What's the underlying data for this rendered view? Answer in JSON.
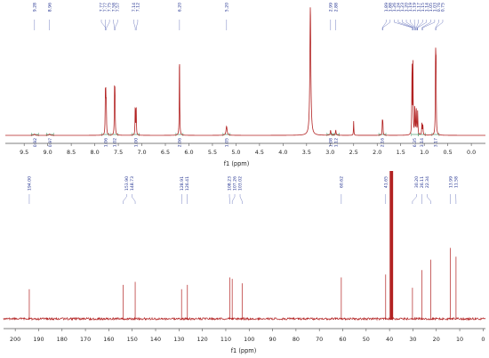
{
  "chart_data": [
    {
      "type": "line",
      "xlabel": "f1 (ppm)",
      "xlim": [
        9.9,
        -0.3
      ],
      "x_reversed": true,
      "ticks": [
        9.5,
        9.0,
        8.5,
        8.0,
        7.5,
        7.0,
        6.5,
        6.0,
        5.5,
        5.0,
        4.5,
        4.0,
        3.5,
        3.0,
        2.5,
        2.0,
        1.5,
        1.0,
        0.5,
        0.0
      ],
      "tick_labels": [
        "9.5",
        "9.0",
        "8.5",
        "8.0",
        "7.5",
        "7.0",
        "6.5",
        "6.0",
        "5.5",
        "5.0",
        "4.5",
        "4.0",
        "3.5",
        "3.0",
        "2.5",
        "2.0",
        "1.5",
        "1.0",
        "0.5",
        "0.0"
      ],
      "peak_labels": [
        {
          "x": 9.28,
          "label": "9.28"
        },
        {
          "x": 8.96,
          "label": "8.96"
        },
        {
          "x": 7.77,
          "label": "7.77"
        },
        {
          "x": 7.77,
          "label": "7.77"
        },
        {
          "x": 7.75,
          "label": "7.75"
        },
        {
          "x": 7.58,
          "label": "7.58"
        },
        {
          "x": 7.57,
          "label": "7.57"
        },
        {
          "x": 7.14,
          "label": "7.14"
        },
        {
          "x": 7.12,
          "label": "7.12"
        },
        {
          "x": 6.2,
          "label": "6.20"
        },
        {
          "x": 5.2,
          "label": "5.20"
        },
        {
          "x": 2.99,
          "label": "2.99"
        },
        {
          "x": 2.88,
          "label": "2.88"
        },
        {
          "x": 1.89,
          "label": "1.89"
        },
        {
          "x": 1.88,
          "label": "1.88"
        },
        {
          "x": 1.26,
          "label": "1.26"
        },
        {
          "x": 1.24,
          "label": "1.24"
        },
        {
          "x": 1.23,
          "label": "1.23"
        },
        {
          "x": 1.2,
          "label": "1.20"
        },
        {
          "x": 1.19,
          "label": "1.19"
        },
        {
          "x": 1.19,
          "label": "1.19"
        },
        {
          "x": 1.17,
          "label": "1.17"
        },
        {
          "x": 1.15,
          "label": "1.15"
        },
        {
          "x": 1.14,
          "label": "1.14"
        },
        {
          "x": 1.05,
          "label": "1.05"
        },
        {
          "x": 1.03,
          "label": "1.03"
        },
        {
          "x": 0.76,
          "label": "0.76"
        },
        {
          "x": 0.75,
          "label": "0.75"
        }
      ],
      "integrals": [
        {
          "x": 9.27,
          "label": "0.92"
        },
        {
          "x": 8.95,
          "label": "0.97"
        },
        {
          "x": 7.77,
          "label": "1.06"
        },
        {
          "x": 7.58,
          "label": "1.02"
        },
        {
          "x": 7.13,
          "label": "1.00"
        },
        {
          "x": 6.2,
          "label": "2.06"
        },
        {
          "x": 5.2,
          "label": "1.05"
        },
        {
          "x": 2.99,
          "label": "1.08"
        },
        {
          "x": 2.88,
          "label": "1.12"
        },
        {
          "x": 1.89,
          "label": "2.16"
        },
        {
          "x": 1.2,
          "label": "6.35"
        },
        {
          "x": 1.05,
          "label": "3.14"
        },
        {
          "x": 0.76,
          "label": "3.17"
        }
      ],
      "peaks": [
        {
          "x": 9.28,
          "h": 0.01,
          "w": 0.012
        },
        {
          "x": 8.96,
          "h": 0.01,
          "w": 0.012
        },
        {
          "x": 7.775,
          "h": 0.3,
          "w": 0.005
        },
        {
          "x": 7.765,
          "h": 0.27,
          "w": 0.005
        },
        {
          "x": 7.755,
          "h": 0.22,
          "w": 0.005
        },
        {
          "x": 7.58,
          "h": 0.36,
          "w": 0.005
        },
        {
          "x": 7.57,
          "h": 0.32,
          "w": 0.005
        },
        {
          "x": 7.14,
          "h": 0.24,
          "w": 0.005
        },
        {
          "x": 7.12,
          "h": 0.22,
          "w": 0.005
        },
        {
          "x": 6.2,
          "h": 0.66,
          "w": 0.005
        },
        {
          "x": 5.2,
          "h": 0.07,
          "w": 0.014
        },
        {
          "x": 3.42,
          "h": 1.0,
          "w": 0.012
        },
        {
          "x": 2.99,
          "h": 0.04,
          "w": 0.008
        },
        {
          "x": 2.88,
          "h": 0.04,
          "w": 0.008
        },
        {
          "x": 2.5,
          "h": 0.11,
          "w": 0.005
        },
        {
          "x": 1.89,
          "h": 0.11,
          "w": 0.005
        },
        {
          "x": 1.88,
          "h": 0.1,
          "w": 0.005
        },
        {
          "x": 1.26,
          "h": 0.57,
          "w": 0.005
        },
        {
          "x": 1.24,
          "h": 0.55,
          "w": 0.005
        },
        {
          "x": 1.2,
          "h": 0.22,
          "w": 0.006
        },
        {
          "x": 1.17,
          "h": 0.2,
          "w": 0.006
        },
        {
          "x": 1.14,
          "h": 0.18,
          "w": 0.006
        },
        {
          "x": 1.05,
          "h": 0.09,
          "w": 0.006
        },
        {
          "x": 1.03,
          "h": 0.08,
          "w": 0.006
        },
        {
          "x": 0.76,
          "h": 0.61,
          "w": 0.005
        },
        {
          "x": 0.75,
          "h": 0.58,
          "w": 0.005
        }
      ]
    },
    {
      "type": "line",
      "xlabel": "f1 (ppm)",
      "xlim": [
        205,
        -1
      ],
      "x_reversed": true,
      "ticks": [
        200,
        190,
        180,
        170,
        160,
        150,
        140,
        130,
        120,
        110,
        100,
        90,
        80,
        70,
        60,
        50,
        40,
        30,
        20,
        10,
        0
      ],
      "tick_labels": [
        "200",
        "190",
        "180",
        "170",
        "160",
        "150",
        "140",
        "130",
        "120",
        "110",
        "100",
        "90",
        "80",
        "70",
        "60",
        "50",
        "40",
        "30",
        "20",
        "10",
        "0"
      ],
      "peak_labels": [
        {
          "x": 194.0,
          "label": "194.00"
        },
        {
          "x": 153.9,
          "label": "153.90"
        },
        {
          "x": 148.73,
          "label": "148.73"
        },
        {
          "x": 128.91,
          "label": "128.91"
        },
        {
          "x": 126.41,
          "label": "126.41"
        },
        {
          "x": 108.23,
          "label": "108.23"
        },
        {
          "x": 107.26,
          "label": "107.26"
        },
        {
          "x": 103.02,
          "label": "103.02"
        },
        {
          "x": 60.62,
          "label": "60.62"
        },
        {
          "x": 41.65,
          "label": "41.65"
        },
        {
          "x": 30.2,
          "label": "30.20"
        },
        {
          "x": 26.11,
          "label": "26.11"
        },
        {
          "x": 22.34,
          "label": "22.34"
        },
        {
          "x": 13.99,
          "label": "13.99"
        },
        {
          "x": 11.58,
          "label": "11.58"
        }
      ],
      "peaks": [
        {
          "x": 194.0,
          "h": 0.2
        },
        {
          "x": 153.9,
          "h": 0.23
        },
        {
          "x": 148.73,
          "h": 0.25
        },
        {
          "x": 128.91,
          "h": 0.2
        },
        {
          "x": 126.41,
          "h": 0.23
        },
        {
          "x": 108.23,
          "h": 0.28
        },
        {
          "x": 107.26,
          "h": 0.27
        },
        {
          "x": 103.02,
          "h": 0.24
        },
        {
          "x": 60.62,
          "h": 0.28
        },
        {
          "x": 41.65,
          "h": 0.3
        },
        {
          "x": 39.8,
          "h": 1.0
        },
        {
          "x": 39.6,
          "h": 1.0
        },
        {
          "x": 39.4,
          "h": 1.0
        },
        {
          "x": 39.2,
          "h": 1.0
        },
        {
          "x": 39.0,
          "h": 1.0
        },
        {
          "x": 38.8,
          "h": 1.0
        },
        {
          "x": 38.6,
          "h": 1.0
        },
        {
          "x": 30.2,
          "h": 0.21
        },
        {
          "x": 26.11,
          "h": 0.33
        },
        {
          "x": 22.34,
          "h": 0.4
        },
        {
          "x": 13.99,
          "h": 0.48
        },
        {
          "x": 11.58,
          "h": 0.42
        }
      ]
    }
  ]
}
